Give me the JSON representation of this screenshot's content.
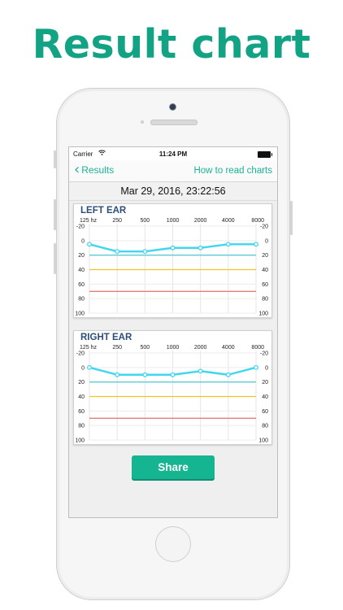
{
  "promo": {
    "title": "Result chart"
  },
  "status_bar": {
    "carrier": "Carrier",
    "time": "11:24 PM"
  },
  "nav": {
    "back_label": "Results",
    "right_link": "How to read charts"
  },
  "date_header": "Mar 29, 2016, 23:22:56",
  "colors": {
    "accent": "#16b592",
    "curve": "#3fd6ef",
    "line_20": "#5ecad6",
    "line_40": "#f3c22a",
    "line_70": "#e2706a",
    "title": "#2d4e77"
  },
  "chart_data": [
    {
      "type": "line",
      "title": "LEFT EAR",
      "xlabel": "",
      "ylabel": "",
      "x_ticks": [
        "125 hz",
        "250",
        "500",
        "1000",
        "2000",
        "4000",
        "8000"
      ],
      "y_ticks": [
        "-20",
        "0",
        "20",
        "40",
        "60",
        "80",
        "100"
      ],
      "ylim": [
        -20,
        100
      ],
      "y_inverted": true,
      "grid": true,
      "threshold_lines": [
        20,
        40,
        70
      ],
      "series": [
        {
          "values": [
            5,
            15,
            15,
            10,
            10,
            5,
            5
          ]
        }
      ]
    },
    {
      "type": "line",
      "title": "RIGHT EAR",
      "xlabel": "",
      "ylabel": "",
      "x_ticks": [
        "125 hz",
        "250",
        "500",
        "1000",
        "2000",
        "4000",
        "8000"
      ],
      "y_ticks": [
        "-20",
        "0",
        "20",
        "40",
        "60",
        "80",
        "100"
      ],
      "ylim": [
        -20,
        100
      ],
      "y_inverted": true,
      "grid": true,
      "threshold_lines": [
        20,
        40,
        70
      ],
      "series": [
        {
          "values": [
            0,
            10,
            10,
            10,
            5,
            10,
            0
          ]
        }
      ]
    }
  ],
  "share_button": {
    "label": "Share"
  }
}
